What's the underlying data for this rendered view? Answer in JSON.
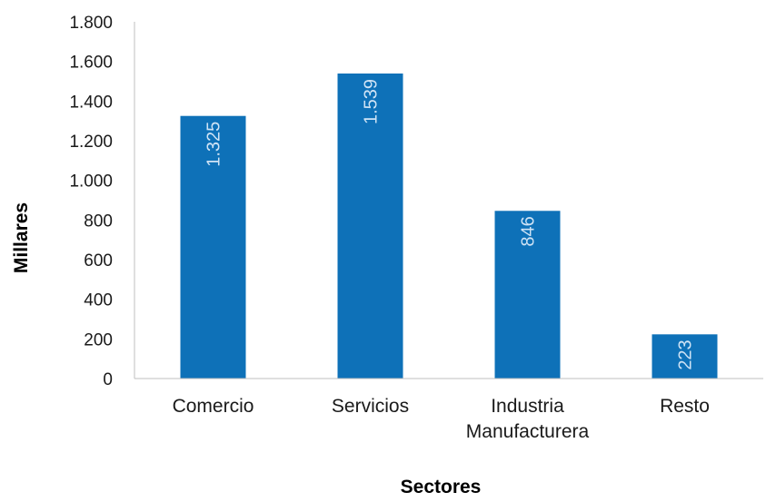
{
  "chart_data": {
    "type": "bar",
    "categories": [
      "Comercio",
      "Servicios",
      "Industria Manufacturera",
      "Resto"
    ],
    "category_lines": [
      [
        "Comercio"
      ],
      [
        "Servicios"
      ],
      [
        "Industria",
        "Manufacturera"
      ],
      [
        "Resto"
      ]
    ],
    "values": [
      1325,
      1539,
      846,
      223
    ],
    "data_labels": [
      "1.325",
      "1.539",
      "846",
      "223"
    ],
    "title": "",
    "xlabel": "Sectores",
    "ylabel": "Millares",
    "ylim": [
      0,
      1800
    ],
    "yticks": [
      0,
      200,
      400,
      600,
      800,
      1000,
      1200,
      1400,
      1600,
      1800
    ],
    "ytick_labels": [
      "0",
      "200",
      "400",
      "600",
      "800",
      "1.000",
      "1.200",
      "1.400",
      "1.600",
      "1.800"
    ],
    "grid": false,
    "legend": "none",
    "bar_color": "#0E71B8",
    "data_label_color": "#CFE3F5"
  }
}
